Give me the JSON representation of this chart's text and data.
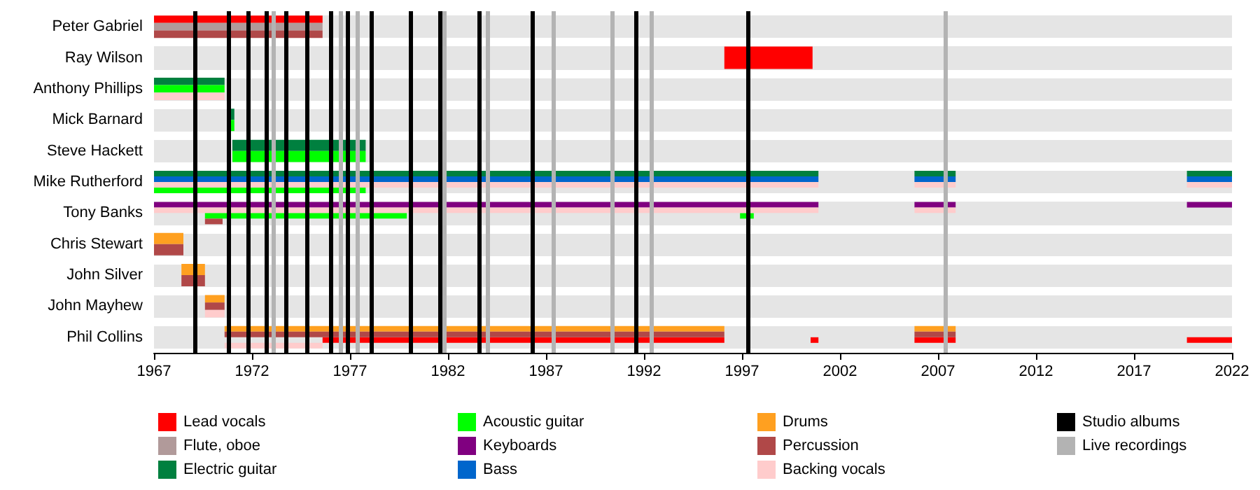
{
  "chart_data": {
    "type": "bar",
    "orientation": "horizontal",
    "legend": "bottom",
    "grid": false,
    "categories": [
      "Peter Gabriel",
      "Ray Wilson",
      "Anthony Phillips",
      "Mick Barnard",
      "Steve Hackett",
      "Mike Rutherford",
      "Tony Banks",
      "Chris Stewart",
      "John Silver",
      "John Mayhew",
      "Phil Collins"
    ],
    "xlim": [
      1967,
      2022
    ],
    "xticks": [
      1967,
      1972,
      1977,
      1982,
      1987,
      1992,
      1997,
      2002,
      2007,
      2012,
      2017,
      2022
    ],
    "series": [
      {
        "name": "Lead vocals",
        "color": "#ff0000",
        "base": [
          1967,
          1996.1,
          null,
          null,
          null,
          null,
          null,
          null,
          null,
          null,
          1975.6
        ],
        "values": [
          8.6,
          4.5,
          null,
          null,
          null,
          null,
          null,
          null,
          null,
          null,
          20.5
        ]
      },
      {
        "color": "#ff0000",
        "base": [
          null,
          null,
          null,
          null,
          null,
          null,
          null,
          null,
          null,
          null,
          2000.5
        ],
        "values": [
          null,
          null,
          null,
          null,
          null,
          null,
          null,
          null,
          null,
          null,
          0.4
        ]
      },
      {
        "color": "#ff0000",
        "base": [
          null,
          null,
          null,
          null,
          null,
          null,
          null,
          null,
          null,
          null,
          2005.8
        ],
        "values": [
          null,
          null,
          null,
          null,
          null,
          null,
          null,
          null,
          null,
          null,
          2.1
        ]
      },
      {
        "color": "#ff0000",
        "base": [
          null,
          null,
          null,
          null,
          null,
          null,
          null,
          null,
          null,
          null,
          2019.7
        ],
        "values": [
          null,
          null,
          null,
          null,
          null,
          null,
          null,
          null,
          null,
          null,
          2.3
        ]
      },
      {
        "name": "Flute, oboe",
        "color": "#b19a9a",
        "base": [
          1967,
          null,
          null,
          null,
          null,
          null,
          null,
          null,
          null,
          null,
          null
        ],
        "values": [
          8.6,
          null,
          null,
          null,
          null,
          null,
          null,
          null,
          null,
          null,
          null
        ]
      },
      {
        "name": "Electric guitar",
        "color": "#00803f",
        "base": [
          null,
          null,
          1967,
          1970.8,
          1971,
          1967,
          null,
          null,
          null,
          null,
          null
        ],
        "values": [
          null,
          null,
          3.6,
          0.3,
          6.8,
          33.9,
          null,
          null,
          null,
          null,
          null
        ]
      },
      {
        "color": "#00803f",
        "base": [
          null,
          null,
          null,
          null,
          null,
          2005.8,
          null,
          null,
          null,
          null,
          null
        ],
        "values": [
          null,
          null,
          null,
          null,
          null,
          2.1,
          null,
          null,
          null,
          null,
          null
        ]
      },
      {
        "color": "#00803f",
        "base": [
          null,
          null,
          null,
          null,
          null,
          2019.7,
          null,
          null,
          null,
          null,
          null
        ],
        "values": [
          null,
          null,
          null,
          null,
          null,
          2.3,
          null,
          null,
          null,
          null,
          null
        ]
      },
      {
        "name": "Acoustic guitar",
        "color": "#00ff00",
        "base": [
          null,
          null,
          1967,
          1970.8,
          1971,
          1967,
          1969.6,
          null,
          null,
          null,
          null
        ],
        "values": [
          null,
          null,
          3.6,
          0.3,
          6.8,
          10.8,
          10.3,
          null,
          null,
          null,
          null
        ]
      },
      {
        "color": "#00ff00",
        "base": [
          null,
          null,
          null,
          null,
          null,
          null,
          1996.9,
          null,
          null,
          null,
          null
        ],
        "values": [
          null,
          null,
          null,
          null,
          null,
          null,
          0.7,
          null,
          null,
          null,
          null
        ]
      },
      {
        "name": "Keyboards",
        "color": "#800080",
        "base": [
          null,
          null,
          null,
          null,
          null,
          null,
          1967,
          null,
          null,
          null,
          null
        ],
        "values": [
          null,
          null,
          null,
          null,
          null,
          null,
          33.9,
          null,
          null,
          null,
          null
        ]
      },
      {
        "color": "#800080",
        "base": [
          null,
          null,
          null,
          null,
          null,
          null,
          2005.8,
          null,
          null,
          null,
          null
        ],
        "values": [
          null,
          null,
          null,
          null,
          null,
          null,
          2.1,
          null,
          null,
          null,
          null
        ]
      },
      {
        "color": "#800080",
        "base": [
          null,
          null,
          null,
          null,
          null,
          null,
          2019.7,
          null,
          null,
          null,
          null
        ],
        "values": [
          null,
          null,
          null,
          null,
          null,
          null,
          2.3,
          null,
          null,
          null,
          null
        ]
      },
      {
        "name": "Bass",
        "color": "#0066cc",
        "base": [
          null,
          null,
          null,
          null,
          null,
          1967,
          null,
          null,
          null,
          null,
          null
        ],
        "values": [
          null,
          null,
          null,
          null,
          null,
          33.9,
          null,
          null,
          null,
          null,
          null
        ]
      },
      {
        "color": "#0066cc",
        "base": [
          null,
          null,
          null,
          null,
          null,
          2005.8,
          null,
          null,
          null,
          null,
          null
        ],
        "values": [
          null,
          null,
          null,
          null,
          null,
          2.1,
          null,
          null,
          null,
          null,
          null
        ]
      },
      {
        "color": "#0066cc",
        "base": [
          null,
          null,
          null,
          null,
          null,
          2019.7,
          null,
          null,
          null,
          null,
          null
        ],
        "values": [
          null,
          null,
          null,
          null,
          null,
          2.3,
          null,
          null,
          null,
          null,
          null
        ]
      },
      {
        "name": "Drums",
        "color": "#ffa020",
        "base": [
          null,
          null,
          null,
          null,
          null,
          null,
          null,
          1967,
          1968.4,
          1969.6,
          1970.6
        ],
        "values": [
          null,
          null,
          null,
          null,
          null,
          null,
          null,
          1.5,
          1.2,
          1.0,
          25.5
        ]
      },
      {
        "color": "#ffa020",
        "base": [
          null,
          null,
          null,
          null,
          null,
          null,
          null,
          null,
          null,
          null,
          2005.8
        ],
        "values": [
          null,
          null,
          null,
          null,
          null,
          null,
          null,
          null,
          null,
          null,
          2.1
        ]
      },
      {
        "name": "Percussion",
        "color": "#b04848",
        "base": [
          1967,
          null,
          null,
          null,
          null,
          null,
          1969.6,
          1967,
          1968.4,
          1969.6,
          1970.6
        ],
        "values": [
          8.6,
          null,
          null,
          null,
          null,
          null,
          0.9,
          1.5,
          1.2,
          1.0,
          25.5
        ]
      },
      {
        "color": "#b04848",
        "base": [
          null,
          null,
          null,
          null,
          null,
          null,
          null,
          null,
          null,
          null,
          2005.8
        ],
        "values": [
          null,
          null,
          null,
          null,
          null,
          null,
          null,
          null,
          null,
          null,
          2.1
        ]
      },
      {
        "name": "Backing vocals",
        "color": "#ffcccc",
        "base": [
          null,
          null,
          1967,
          null,
          null,
          1967,
          1967,
          null,
          null,
          1969.6,
          1970.6
        ],
        "values": [
          null,
          null,
          3.6,
          null,
          null,
          33.9,
          33.9,
          null,
          null,
          1.0,
          5.0
        ]
      },
      {
        "color": "#ffcccc",
        "base": [
          null,
          null,
          null,
          null,
          null,
          2005.8,
          2005.8,
          null,
          null,
          null,
          null
        ],
        "values": [
          null,
          null,
          null,
          null,
          null,
          2.1,
          2.1,
          null,
          null,
          null,
          null
        ]
      },
      {
        "color": "#ffcccc",
        "base": [
          null,
          null,
          null,
          null,
          null,
          2019.7,
          null,
          null,
          null,
          null,
          null
        ],
        "values": [
          null,
          null,
          null,
          null,
          null,
          2.3,
          null,
          null,
          null,
          null,
          null
        ]
      }
    ],
    "ref_lines": [
      {
        "axis": "x",
        "value": 1969.1,
        "color": "#000000",
        "label": "Studio albums"
      },
      {
        "axis": "x",
        "value": 1970.8,
        "color": "#000000"
      },
      {
        "axis": "x",
        "value": 1971.8,
        "color": "#000000"
      },
      {
        "axis": "x",
        "value": 1972.7,
        "color": "#000000"
      },
      {
        "axis": "x",
        "value": 1973.7,
        "color": "#000000"
      },
      {
        "axis": "x",
        "value": 1974.8,
        "color": "#000000"
      },
      {
        "axis": "x",
        "value": 1976.0,
        "color": "#000000"
      },
      {
        "axis": "x",
        "value": 1976.9,
        "color": "#000000"
      },
      {
        "axis": "x",
        "value": 1978.1,
        "color": "#000000"
      },
      {
        "axis": "x",
        "value": 1980.1,
        "color": "#000000"
      },
      {
        "axis": "x",
        "value": 1981.6,
        "color": "#000000"
      },
      {
        "axis": "x",
        "value": 1983.6,
        "color": "#000000"
      },
      {
        "axis": "x",
        "value": 1986.3,
        "color": "#000000"
      },
      {
        "axis": "x",
        "value": 1991.6,
        "color": "#000000"
      },
      {
        "axis": "x",
        "value": 1997.3,
        "color": "#000000"
      },
      {
        "axis": "x",
        "value": 1973.1,
        "color": "#b3b3b3",
        "label": "Live recordings"
      },
      {
        "axis": "x",
        "value": 1976.5,
        "color": "#b3b3b3"
      },
      {
        "axis": "x",
        "value": 1977.4,
        "color": "#b3b3b3"
      },
      {
        "axis": "x",
        "value": 1981.8,
        "color": "#b3b3b3"
      },
      {
        "axis": "x",
        "value": 1984.0,
        "color": "#b3b3b3"
      },
      {
        "axis": "x",
        "value": 1987.4,
        "color": "#b3b3b3"
      },
      {
        "axis": "x",
        "value": 1990.4,
        "color": "#b3b3b3"
      },
      {
        "axis": "x",
        "value": 1992.4,
        "color": "#b3b3b3"
      },
      {
        "axis": "x",
        "value": 2007.4,
        "color": "#b3b3b3"
      }
    ]
  }
}
